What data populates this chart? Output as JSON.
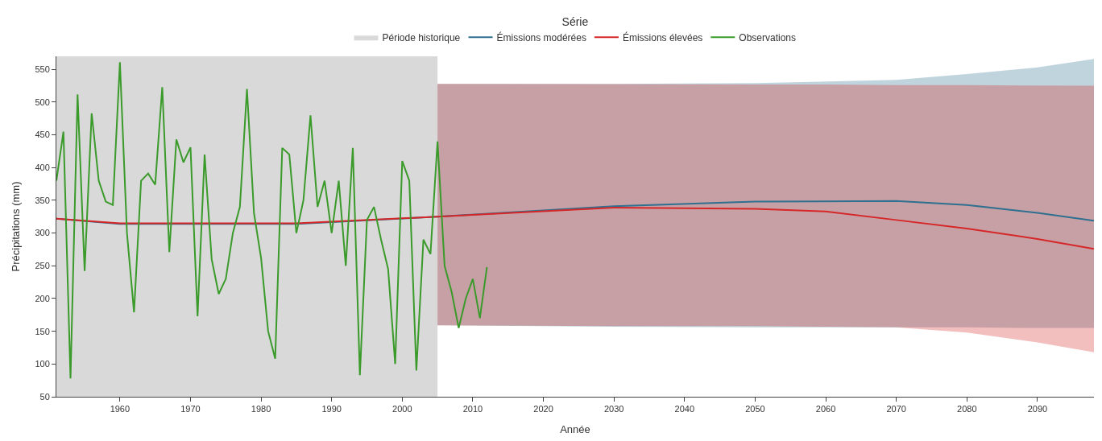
{
  "chart_data": {
    "type": "line",
    "xlabel": "Année",
    "ylabel": "Précipitations (mm)",
    "legend_title": "Série",
    "xlim": [
      1951,
      2098
    ],
    "xticks": [
      1960,
      1970,
      1980,
      1990,
      2000,
      2010,
      2020,
      2030,
      2040,
      2050,
      2060,
      2070,
      2080,
      2090
    ],
    "ylim": [
      50,
      570
    ],
    "yticks": [
      50,
      100,
      150,
      200,
      250,
      300,
      350,
      400,
      450,
      500,
      550
    ],
    "legend": "top",
    "marker": "none",
    "line_style": "solid",
    "bands": [
      {
        "axis": "x",
        "from": 1951,
        "to": 2005,
        "label": "Période historique",
        "color": "#d9d9d9"
      }
    ],
    "series": [
      {
        "name": "Émissions modérées",
        "color": "#2f6f8f",
        "x": [
          1951,
          1960,
          1985,
          2005,
          2030,
          2050,
          2070,
          2080,
          2090,
          2098
        ],
        "values": [
          322,
          314,
          314,
          325,
          341,
          348,
          349,
          343,
          331,
          319
        ],
        "lower": [
          null,
          null,
          null,
          159,
          157,
          156,
          156,
          156,
          155,
          155
        ],
        "upper": [
          null,
          null,
          null,
          528,
          528,
          529,
          534,
          543,
          553,
          566
        ]
      },
      {
        "name": "Émissions élevées",
        "color": "#d62728",
        "x": [
          1951,
          1960,
          1985,
          2005,
          2030,
          2050,
          2060,
          2070,
          2080,
          2090,
          2098
        ],
        "values": [
          322,
          315,
          315,
          325,
          339,
          337,
          333,
          320,
          307,
          291,
          276
        ],
        "lower": [
          null,
          null,
          null,
          159,
          158,
          158,
          157,
          156,
          148,
          133,
          118
        ],
        "upper": [
          null,
          null,
          null,
          528,
          527,
          527,
          527,
          526,
          526,
          525,
          525
        ]
      },
      {
        "name": "Observations",
        "color": "#3a9a2a",
        "x": [
          1951,
          1952,
          1953,
          1954,
          1955,
          1956,
          1957,
          1958,
          1959,
          1960,
          1961,
          1962,
          1963,
          1964,
          1965,
          1966,
          1967,
          1968,
          1969,
          1970,
          1971,
          1972,
          1973,
          1974,
          1975,
          1976,
          1977,
          1978,
          1979,
          1980,
          1981,
          1982,
          1983,
          1984,
          1985,
          1986,
          1987,
          1988,
          1989,
          1990,
          1991,
          1992,
          1993,
          1994,
          1995,
          1996,
          1997,
          1998,
          1999,
          2000,
          2001,
          2002,
          2003,
          2004,
          2005,
          2006,
          2007,
          2008,
          2009,
          2010,
          2011,
          2012
        ],
        "values": [
          380,
          455,
          78,
          512,
          242,
          483,
          380,
          348,
          343,
          561,
          300,
          179,
          380,
          391,
          374,
          523,
          271,
          443,
          408,
          431,
          173,
          420,
          260,
          207,
          230,
          300,
          340,
          520,
          330,
          262,
          150,
          108,
          430,
          420,
          300,
          350,
          480,
          340,
          380,
          300,
          380,
          250,
          430,
          83,
          320,
          340,
          290,
          245,
          100,
          410,
          380,
          90,
          290,
          268,
          440,
          250,
          210,
          155,
          200,
          230,
          170,
          248
        ]
      }
    ]
  }
}
